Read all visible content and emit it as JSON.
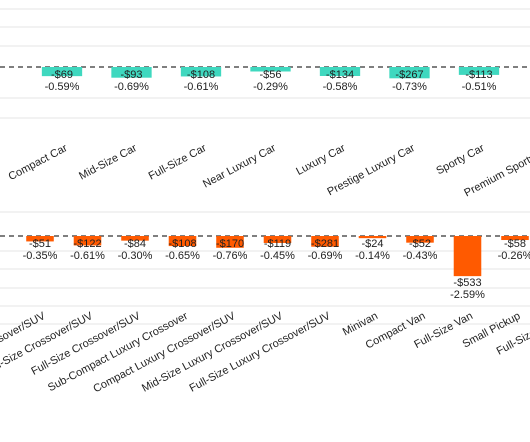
{
  "chart_data": [
    {
      "type": "bar",
      "color": "#3fd8bf",
      "categories": [
        "Compact Car",
        "Mid-Size Car",
        "Full-Size Car",
        "Near Luxury Car",
        "Luxury Car",
        "Prestige Luxury Car",
        "Sporty Car",
        "Premium Sporty Car"
      ],
      "values": [
        -0.59,
        -0.69,
        -0.61,
        -0.29,
        -0.58,
        -0.73,
        -0.51,
        null
      ],
      "value_labels": [
        "-0.59%",
        "-0.69%",
        "-0.61%",
        "-0.29%",
        "-0.58%",
        "-0.73%",
        "-0.51%",
        null
      ],
      "dollar_values": [
        -69,
        -93,
        -108,
        -56,
        -134,
        -267,
        -113,
        null
      ],
      "dollar_labels": [
        "-$69",
        "-$93",
        "-$108",
        "-$56",
        "-$134",
        "-$267",
        "-$113",
        null
      ]
    },
    {
      "type": "bar",
      "color": "#ff5a00",
      "categories": [
        "Compact Crossover/SUV",
        "Mid-Size Crossover/SUV",
        "Full-Size Crossover/SUV",
        "Sub-Compact Luxury Crossover",
        "Compact Luxury Crossover/SUV",
        "Mid-Size Luxury Crossover/SUV",
        "Full-Size Luxury Crossover/SUV",
        "Minivan",
        "Compact Van",
        "Full-Size Van",
        "Small Pickup",
        "Full-Size Pickup"
      ],
      "values": [
        -0.35,
        -0.61,
        -0.3,
        -0.65,
        -0.76,
        -0.45,
        -0.69,
        -0.14,
        -0.43,
        -2.59,
        -0.26,
        null
      ],
      "value_labels": [
        "-0.35%",
        "-0.61%",
        "-0.30%",
        "-0.65%",
        "-0.76%",
        "-0.45%",
        "-0.69%",
        "-0.14%",
        "-0.43%",
        "-2.59%",
        "-0.26%",
        null
      ],
      "dollar_values": [
        -51,
        -122,
        -84,
        -108,
        -170,
        -119,
        -281,
        -24,
        -52,
        -533,
        -58,
        null
      ],
      "dollar_labels": [
        "-$51",
        "-$122",
        "-$84",
        "-$108",
        "-$170",
        "-$119",
        "-$281",
        "-$24",
        "-$52",
        "-$533",
        "-$58",
        null
      ]
    }
  ]
}
